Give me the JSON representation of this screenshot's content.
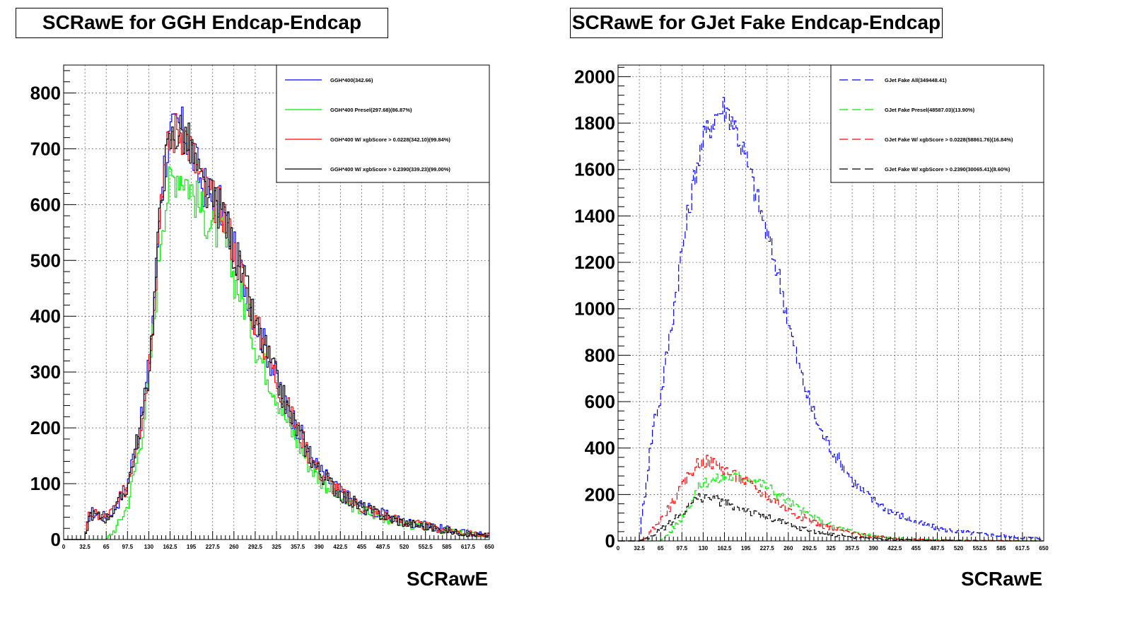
{
  "chart_data": [
    {
      "type": "line",
      "title": "SCRawE for GGH Endcap-Endcap",
      "xlabel": "SCRawE",
      "ylabel": "",
      "xlim": [
        0,
        650
      ],
      "ylim": [
        0,
        850
      ],
      "grid": true,
      "legend_position": "top-right",
      "x_ticks": [
        "0",
        "32.5",
        "65",
        "97.5",
        "130",
        "162.5",
        "195",
        "227.5",
        "260",
        "292.5",
        "325",
        "357.5",
        "390",
        "422.5",
        "455",
        "487.5",
        "520",
        "552.5",
        "585",
        "617.5",
        "650"
      ],
      "y_ticks": [
        "0",
        "100",
        "200",
        "300",
        "400",
        "500",
        "600",
        "700",
        "800"
      ],
      "x": [
        0,
        32.5,
        40,
        50,
        65,
        80,
        97.5,
        110,
        120,
        130,
        140,
        150,
        162.5,
        175,
        185,
        195,
        210,
        227.5,
        245,
        260,
        280,
        292.5,
        310,
        325,
        345,
        357.5,
        375,
        390,
        410,
        422.5,
        440,
        455,
        475,
        487.5,
        520,
        552.5,
        585,
        617.5,
        650
      ],
      "series": [
        {
          "name": "GGH*400(342.66)",
          "color": "#0000ff",
          "values": [
            0,
            0,
            50,
            45,
            40,
            60,
            100,
            170,
            220,
            310,
            460,
            650,
            720,
            740,
            730,
            700,
            640,
            610,
            590,
            520,
            450,
            390,
            340,
            290,
            230,
            200,
            155,
            125,
            100,
            85,
            70,
            60,
            50,
            45,
            32,
            25,
            18,
            12,
            8
          ]
        },
        {
          "name": "GGH*400 Presel(297.68)(86.87%)",
          "color": "#00ee00",
          "values": [
            0,
            0,
            0,
            0,
            0,
            20,
            60,
            130,
            190,
            280,
            420,
            570,
            640,
            660,
            650,
            630,
            590,
            560,
            540,
            470,
            410,
            350,
            300,
            260,
            200,
            175,
            135,
            110,
            90,
            75,
            62,
            52,
            45,
            40,
            28,
            22,
            15,
            10,
            6
          ]
        },
        {
          "name": "GGH*400 W/ xgbScore > 0.0228(342.10)(99.84%)",
          "color": "#ff0000",
          "values": [
            0,
            0,
            48,
            44,
            40,
            58,
            98,
            168,
            220,
            305,
            455,
            645,
            718,
            738,
            728,
            698,
            638,
            608,
            588,
            518,
            448,
            388,
            338,
            288,
            228,
            198,
            153,
            123,
            98,
            84,
            69,
            59,
            49,
            44,
            31,
            24,
            17,
            11,
            7
          ]
        },
        {
          "name": "GGH*400 W/ xgbScore > 0.2390(339.23)(99.00%)",
          "color": "#000000",
          "values": [
            0,
            0,
            46,
            43,
            38,
            56,
            96,
            165,
            215,
            300,
            450,
            640,
            712,
            735,
            725,
            695,
            635,
            605,
            585,
            515,
            445,
            385,
            336,
            286,
            226,
            196,
            152,
            122,
            97,
            83,
            68,
            58,
            48,
            43,
            30,
            23,
            16,
            10,
            6
          ]
        }
      ]
    },
    {
      "type": "line",
      "title": "SCRawE for GJet Fake Endcap-Endcap",
      "xlabel": "SCRawE",
      "ylabel": "",
      "xlim": [
        0,
        650
      ],
      "ylim": [
        0,
        2050
      ],
      "grid": true,
      "legend_position": "top-right",
      "x_ticks": [
        "0",
        "32.5",
        "65",
        "97.5",
        "130",
        "162.5",
        "195",
        "227.5",
        "260",
        "292.5",
        "325",
        "357.5",
        "390",
        "422.5",
        "455",
        "487.5",
        "520",
        "552.5",
        "585",
        "617.5",
        "650"
      ],
      "y_ticks": [
        "0",
        "200",
        "400",
        "600",
        "800",
        "1000",
        "1200",
        "1400",
        "1600",
        "1800",
        "2000"
      ],
      "x": [
        0,
        32.5,
        45,
        55,
        65,
        80,
        97.5,
        110,
        120,
        130,
        140,
        150,
        162.5,
        175,
        195,
        210,
        227.5,
        245,
        260,
        275,
        292.5,
        310,
        325,
        345,
        357.5,
        375,
        390,
        410,
        422.5,
        440,
        455,
        475,
        487.5,
        520,
        552.5,
        585,
        617.5,
        650
      ],
      "series": [
        {
          "name": "GJet Fake All(349448.41)",
          "color": "#0000ff",
          "values": [
            0,
            0,
            300,
            520,
            620,
            900,
            1250,
            1450,
            1620,
            1720,
            1790,
            1840,
            1870,
            1820,
            1650,
            1500,
            1320,
            1150,
            950,
            760,
            600,
            470,
            400,
            320,
            260,
            210,
            175,
            140,
            120,
            100,
            80,
            65,
            55,
            40,
            30,
            22,
            15,
            10
          ]
        },
        {
          "name": "GJet Fake Presel(48587.03)(13.90%)",
          "color": "#00ee00",
          "values": [
            0,
            0,
            0,
            0,
            0,
            40,
            100,
            160,
            220,
            250,
            260,
            265,
            270,
            275,
            280,
            260,
            235,
            200,
            170,
            140,
            110,
            85,
            65,
            50,
            40,
            30,
            22,
            16,
            12,
            9,
            7,
            5,
            4,
            3,
            2,
            1,
            1,
            0
          ]
        },
        {
          "name": "GJet Fake W/ xgbScore > 0.0228(58861.76)(16.84%)",
          "color": "#ff0000",
          "values": [
            0,
            0,
            20,
            60,
            90,
            150,
            230,
            290,
            330,
            345,
            340,
            330,
            310,
            285,
            255,
            225,
            195,
            165,
            135,
            110,
            90,
            70,
            55,
            42,
            33,
            25,
            19,
            14,
            10,
            8,
            6,
            4,
            3,
            2,
            1,
            1,
            0,
            0
          ]
        },
        {
          "name": "GJet Fake W/ xgbScore > 0.2390(30065.41)(8.60%)",
          "color": "#000000",
          "values": [
            0,
            0,
            10,
            30,
            45,
            80,
            120,
            160,
            180,
            190,
            185,
            175,
            165,
            150,
            135,
            115,
            100,
            85,
            70,
            58,
            46,
            36,
            28,
            22,
            17,
            13,
            10,
            7,
            5,
            4,
            3,
            2,
            2,
            1,
            1,
            0,
            0,
            0
          ]
        }
      ]
    }
  ]
}
